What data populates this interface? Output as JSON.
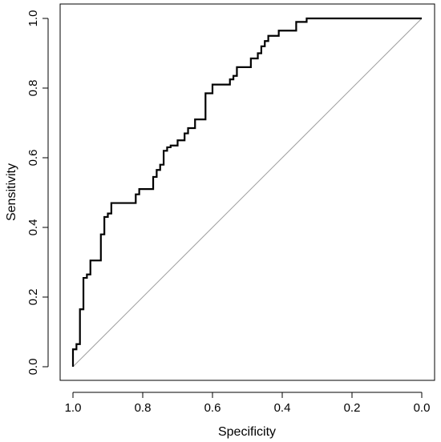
{
  "chart_data": {
    "type": "line",
    "title": "",
    "xlabel": "Specificity",
    "ylabel": "Sensitivity",
    "xlim": [
      1.0,
      0.0
    ],
    "ylim": [
      0.0,
      1.0
    ],
    "x_reversed": true,
    "grid": false,
    "legend": "none",
    "xticks": [
      1.0,
      0.8,
      0.6,
      0.4,
      0.2,
      0.0
    ],
    "xtick_labels": [
      "1.0",
      "0.8",
      "0.6",
      "0.4",
      "0.2",
      "0.0"
    ],
    "yticks": [
      0.0,
      0.2,
      0.4,
      0.6,
      0.8,
      1.0
    ],
    "ytick_labels": [
      "0.0",
      "0.2",
      "0.4",
      "0.6",
      "0.8",
      "1.0"
    ],
    "series": [
      {
        "role": "roc-curve",
        "color": "#000000",
        "step": true,
        "x": [
          1.0,
          1.0,
          0.99,
          0.99,
          0.98,
          0.98,
          0.97,
          0.97,
          0.96,
          0.96,
          0.95,
          0.95,
          0.94,
          0.94,
          0.92,
          0.92,
          0.91,
          0.91,
          0.9,
          0.9,
          0.89,
          0.89,
          0.82,
          0.82,
          0.81,
          0.81,
          0.77,
          0.77,
          0.76,
          0.76,
          0.75,
          0.75,
          0.74,
          0.74,
          0.73,
          0.73,
          0.72,
          0.72,
          0.7,
          0.7,
          0.68,
          0.68,
          0.67,
          0.67,
          0.65,
          0.65,
          0.62,
          0.62,
          0.6,
          0.6,
          0.55,
          0.55,
          0.54,
          0.54,
          0.53,
          0.53,
          0.49,
          0.49,
          0.47,
          0.47,
          0.46,
          0.46,
          0.45,
          0.45,
          0.44,
          0.44,
          0.41,
          0.41,
          0.36,
          0.36,
          0.33,
          0.33,
          0.23,
          0.23,
          0.0
        ],
        "y": [
          0.0,
          0.05,
          0.05,
          0.065,
          0.065,
          0.165,
          0.165,
          0.255,
          0.255,
          0.265,
          0.265,
          0.305,
          0.305,
          0.305,
          0.305,
          0.38,
          0.38,
          0.43,
          0.43,
          0.44,
          0.44,
          0.47,
          0.47,
          0.495,
          0.495,
          0.51,
          0.51,
          0.545,
          0.545,
          0.565,
          0.565,
          0.58,
          0.58,
          0.62,
          0.62,
          0.63,
          0.63,
          0.635,
          0.635,
          0.65,
          0.65,
          0.67,
          0.67,
          0.685,
          0.685,
          0.71,
          0.71,
          0.785,
          0.785,
          0.81,
          0.81,
          0.825,
          0.825,
          0.835,
          0.835,
          0.86,
          0.86,
          0.885,
          0.885,
          0.9,
          0.9,
          0.92,
          0.92,
          0.935,
          0.935,
          0.95,
          0.95,
          0.965,
          0.965,
          0.99,
          0.99,
          1.0,
          1.0,
          1.0,
          1.0
        ]
      },
      {
        "role": "reference-diagonal",
        "color": "#a0a0a0",
        "x": [
          1.0,
          0.0
        ],
        "y": [
          0.0,
          1.0
        ]
      }
    ]
  }
}
